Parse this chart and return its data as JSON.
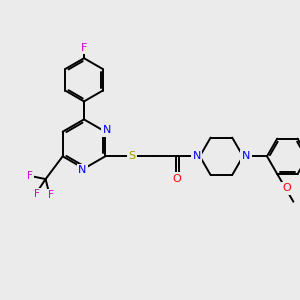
{
  "background_color": "#ebebeb",
  "bond_color": "#000000",
  "atom_colors": {
    "F": "#cc00cc",
    "N": "#0000ff",
    "O": "#ff0000",
    "S": "#999900",
    "C": "#000000"
  },
  "bond_width": 1.4,
  "figsize": [
    3.0,
    3.0
  ],
  "dpi": 100,
  "xlim": [
    0,
    10
  ],
  "ylim": [
    0,
    10
  ]
}
